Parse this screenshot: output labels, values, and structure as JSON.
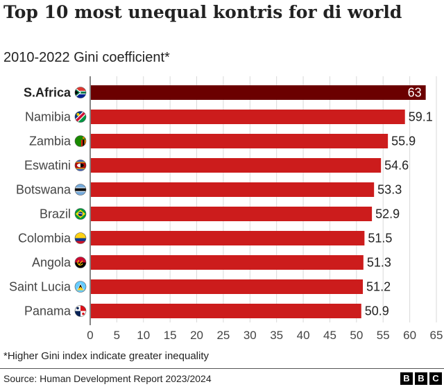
{
  "title": "Top 10 most unequal kontris for di world",
  "subtitle": "2010-2022 Gini coefficient*",
  "footnote": "*Higher Gini index indicate greater inequality",
  "source": "Source: Human Development Report 2023/2024",
  "logo": [
    "B",
    "B",
    "C"
  ],
  "colors": {
    "highlight": "#6b0000",
    "bar": "#cc1c1c",
    "grid": "#d9d9d9",
    "text": "#222222"
  },
  "chart_data": {
    "type": "bar",
    "orientation": "horizontal",
    "categories": [
      "S.Africa",
      "Namibia",
      "Zambia",
      "Eswatini",
      "Botswana",
      "Brazil",
      "Colombia",
      "Angola",
      "Saint Lucia",
      "Panama"
    ],
    "values": [
      63,
      59.1,
      55.9,
      54.6,
      53.3,
      52.9,
      51.5,
      51.3,
      51.2,
      50.9
    ],
    "value_labels": [
      "63",
      "59.1",
      "55.9",
      "54.6",
      "53.3",
      "52.9",
      "51.5",
      "51.3",
      "51.2",
      "50.9"
    ],
    "highlight_index": 0,
    "flag_icons": [
      "south-africa-flag-icon",
      "namibia-flag-icon",
      "zambia-flag-icon",
      "eswatini-flag-icon",
      "botswana-flag-icon",
      "brazil-flag-icon",
      "colombia-flag-icon",
      "angola-flag-icon",
      "saint-lucia-flag-icon",
      "panama-flag-icon"
    ],
    "xlim": [
      0,
      65
    ],
    "xticks": [
      0,
      5,
      10,
      15,
      20,
      25,
      30,
      35,
      40,
      45,
      50,
      55,
      60,
      65
    ],
    "grid": true,
    "xlabel": "",
    "ylabel": ""
  }
}
